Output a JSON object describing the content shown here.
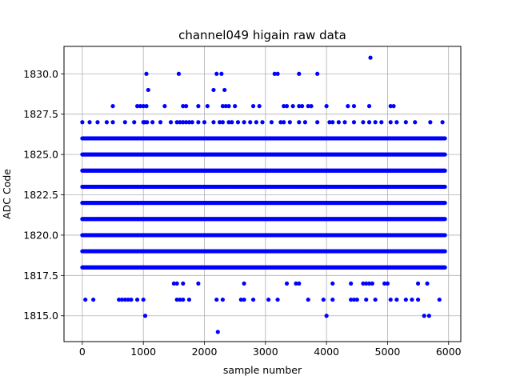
{
  "chart_data": {
    "type": "scatter",
    "title": "channel049 higain raw data",
    "xlabel": "sample number",
    "ylabel": "ADC Code",
    "xlim": [
      -300,
      6200
    ],
    "ylim": [
      1813.4,
      1831.7
    ],
    "xticks": [
      0,
      1000,
      2000,
      3000,
      4000,
      5000,
      6000
    ],
    "xtick_labels": [
      "0",
      "1000",
      "2000",
      "3000",
      "4000",
      "5000",
      "6000"
    ],
    "yticks": [
      1815.0,
      1817.5,
      1820.0,
      1822.5,
      1825.0,
      1827.5,
      1830.0
    ],
    "ytick_labels": [
      "1815.0",
      "1817.5",
      "1820.0",
      "1822.5",
      "1825.0",
      "1827.5",
      "1830.0"
    ],
    "grid": true,
    "marker_color": "#0000ff",
    "series": [
      {
        "name": "",
        "x_range": [
          0,
          5940
        ],
        "dense_levels": [
          1818,
          1819,
          1820,
          1821,
          1822,
          1823,
          1824,
          1825,
          1826
        ],
        "sparse_points": [
          {
            "level": 1827,
            "x": [
              0,
              120,
              250,
              400,
              500,
              700,
              850,
              1000,
              1020,
              1060,
              1150,
              1280,
              1450,
              1550,
              1600,
              1650,
              1700,
              1750,
              1800,
              1900,
              2000,
              2150,
              2250,
              2300,
              2400,
              2450,
              2550,
              2650,
              2750,
              2850,
              2950,
              3100,
              3250,
              3300,
              3400,
              3550,
              3650,
              3850,
              4050,
              4100,
              4200,
              4300,
              4450,
              4600,
              4700,
              4800,
              4900,
              5050,
              5150,
              5300,
              5450,
              5700,
              5900
            ]
          },
          {
            "level": 1828,
            "x": [
              500,
              900,
              950,
              1000,
              1050,
              1350,
              1650,
              1700,
              1900,
              2050,
              2300,
              2350,
              2400,
              2500,
              2800,
              2900,
              3300,
              3350,
              3450,
              3550,
              3600,
              3700,
              3750,
              4000,
              4350,
              4450,
              4700,
              5050,
              5100
            ]
          },
          {
            "level": 1829,
            "x": [
              1080,
              2150,
              2330
            ]
          },
          {
            "level": 1830,
            "x": [
              1050,
              1580,
              2200,
              2280,
              3150,
              3200,
              3550,
              3850
            ]
          },
          {
            "level": 1831,
            "x": [
              4720
            ]
          },
          {
            "level": 1817,
            "x": [
              1500,
              1550,
              1650,
              1900,
              2650,
              3350,
              3500,
              3550,
              4100,
              4400,
              4600,
              4650,
              4700,
              4750,
              4950,
              5000,
              5500,
              5650
            ]
          },
          {
            "level": 1816,
            "x": [
              50,
              180,
              600,
              650,
              700,
              750,
              800,
              900,
              1000,
              1550,
              1600,
              1650,
              1750,
              2200,
              2300,
              2600,
              2650,
              2800,
              3050,
              3200,
              3700,
              3950,
              4100,
              4400,
              4450,
              4500,
              4650,
              4800,
              5050,
              5150,
              5300,
              5400,
              5500,
              5850
            ]
          },
          {
            "level": 1815,
            "x": [
              1030,
              4000,
              5600,
              5680
            ]
          },
          {
            "level": 1814,
            "x": [
              2220
            ]
          }
        ]
      }
    ]
  }
}
